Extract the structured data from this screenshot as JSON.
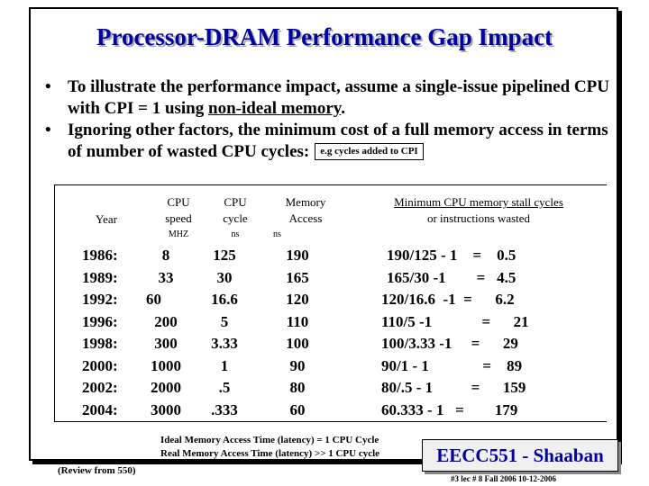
{
  "title": "Processor-DRAM  Performance Gap Impact",
  "bullets": [
    {
      "dot": "•",
      "pre": "To  illustrate the performance impact, assume a single-issue pipelined  CPU with CPI = 1  using ",
      "underline": "non-ideal memory",
      "post": "."
    },
    {
      "dot": "•",
      "text": "Ignoring other factors, the minimum cost of a full memory access in terms of number of wasted CPU cycles:",
      "box": "e.g cycles added to CPI"
    }
  ],
  "table": {
    "headers": {
      "year": "Year",
      "cpu_speed": [
        "CPU",
        "speed"
      ],
      "cpu_speed_unit": "MHZ",
      "cpu_cycle": [
        "CPU",
        "cycle"
      ],
      "cpu_cycle_unit": "ns",
      "mem_access": [
        "Memory",
        "Access"
      ],
      "mem_access_unit": "ns",
      "stall": [
        "Minimum CPU memory stall cycles",
        "or instructions wasted"
      ]
    },
    "years": [
      "1986:",
      "1989:",
      "1992:",
      "1996:",
      "1998:",
      "2000:",
      "2002:",
      "2004:"
    ],
    "cpu_speed": [
      "8",
      "33",
      "60",
      "200",
      "300",
      "1000",
      "2000",
      "3000"
    ],
    "cpu_cycle": [
      "125",
      "30",
      "16.6",
      "5",
      "3.33",
      "1",
      ".5",
      ".333"
    ],
    "mem_access": [
      "190",
      "165",
      "120",
      "110",
      "100",
      "90",
      "80",
      "60"
    ],
    "stall": [
      "190/125 - 1    =    0.5",
      "165/30 -1        =   4.5",
      "120/16.6  -1  =      6.2",
      "110/5 -1             =      21",
      "100/3.33 -1     =      29",
      "90/1 - 1              =    89",
      "80/.5 - 1          =      159",
      "60.333 - 1   =        179"
    ]
  },
  "notes": [
    "Ideal Memory Access Time (latency) = 1 CPU Cycle",
    "Real Memory Access Time (latency) >> 1 CPU cycle"
  ],
  "review": "(Review from 550)",
  "badge": "EECC551 - Shaaban",
  "footer": "#3   lec # 8   Fall 2006  10-12-2006"
}
